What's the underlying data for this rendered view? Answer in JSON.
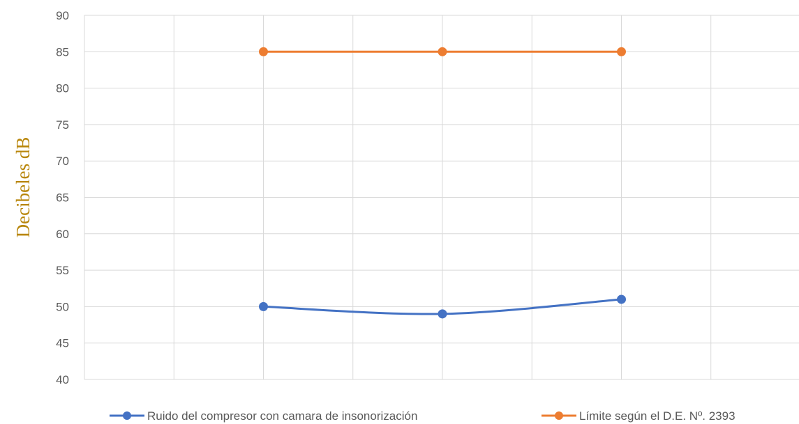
{
  "chart_data": {
    "type": "line",
    "title": "",
    "xlabel": "",
    "ylabel": "Decibeles dB",
    "ylim": [
      40,
      90
    ],
    "yticks": [
      40,
      45,
      50,
      55,
      60,
      65,
      70,
      75,
      80,
      85,
      90
    ],
    "grid": true,
    "legend_position": "bottom",
    "x": [
      2,
      4,
      6
    ],
    "xlim": [
      0,
      8
    ],
    "series": [
      {
        "name": "Ruido del compresor con camara de insonorización",
        "color": "#4472c4",
        "smooth": true,
        "marker": "circle",
        "values": [
          50,
          49,
          51
        ]
      },
      {
        "name": "Límite según el D.E. Nº. 2393",
        "color": "#ed7d31",
        "smooth": false,
        "marker": "circle",
        "values": [
          85,
          85,
          85
        ]
      }
    ]
  }
}
